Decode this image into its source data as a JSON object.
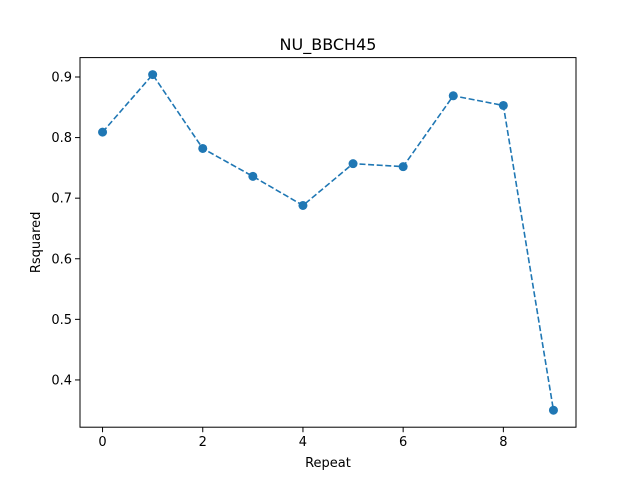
{
  "chart_data": {
    "type": "line",
    "title": "NU_BBCH45",
    "xlabel": "Repeat",
    "ylabel": "Rsquared",
    "x": [
      0,
      1,
      2,
      3,
      4,
      5,
      6,
      7,
      8,
      9
    ],
    "series": [
      {
        "values": [
          0.809,
          0.904,
          0.782,
          0.736,
          0.688,
          0.757,
          0.752,
          0.869,
          0.853,
          0.35
        ],
        "color": "#1f77b4",
        "line_style": "dashed",
        "marker": "circle"
      }
    ],
    "xlim": [
      -0.45,
      9.45
    ],
    "ylim": [
      0.322,
      0.932
    ],
    "xticks": [
      0,
      2,
      4,
      6,
      8
    ],
    "yticks": [
      0.4,
      0.5,
      0.6,
      0.7,
      0.8,
      0.9
    ],
    "grid": false,
    "legend": false
  }
}
